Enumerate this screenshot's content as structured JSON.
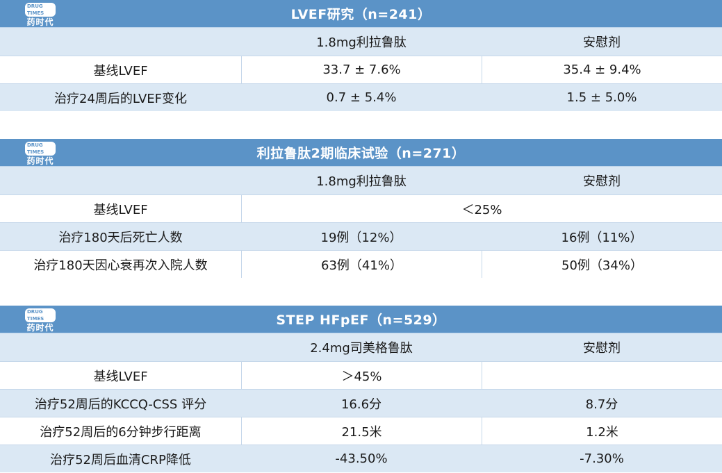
{
  "logo": {
    "badge": "DRUG TIMES",
    "text": "药时代"
  },
  "sections": [
    {
      "title": "LVEF研究（n=241）",
      "header": [
        "",
        "1.8mg利拉鲁肽",
        "安慰剂"
      ],
      "rows": [
        [
          "基线LVEF",
          "33.7 ± 7.6%",
          "35.4 ± 9.4%"
        ],
        [
          "治疗24周后的LVEF变化",
          "0.7 ± 5.4%",
          "1.5 ± 5.0%"
        ]
      ]
    },
    {
      "title": "利拉鲁肽2期临床试验（n=271）",
      "header": [
        "",
        "1.8mg利拉鲁肽",
        "安慰剂"
      ],
      "rows": [
        [
          "基线LVEF",
          "＜25%"
        ],
        [
          "治疗180天后死亡人数",
          "19例（12%）",
          "16例（11%）"
        ],
        [
          "治疗180天因心衰再次入院人数",
          "63例（41%）",
          "50例（34%）"
        ]
      ]
    },
    {
      "title": "STEP HFpEF（n=529）",
      "header": [
        "",
        "2.4mg司美格鲁肽",
        "安慰剂"
      ],
      "rows": [
        [
          "基线LVEF",
          "＞45%",
          ""
        ],
        [
          "治疗52周后的KCCQ-CSS 评分",
          "16.6分",
          "8.7分"
        ],
        [
          "治疗52周后的6分钟步行距离",
          "21.5米",
          "1.2米"
        ],
        [
          "治疗52周后血清CRP降低",
          "-43.50%",
          "-7.30%"
        ]
      ]
    }
  ]
}
